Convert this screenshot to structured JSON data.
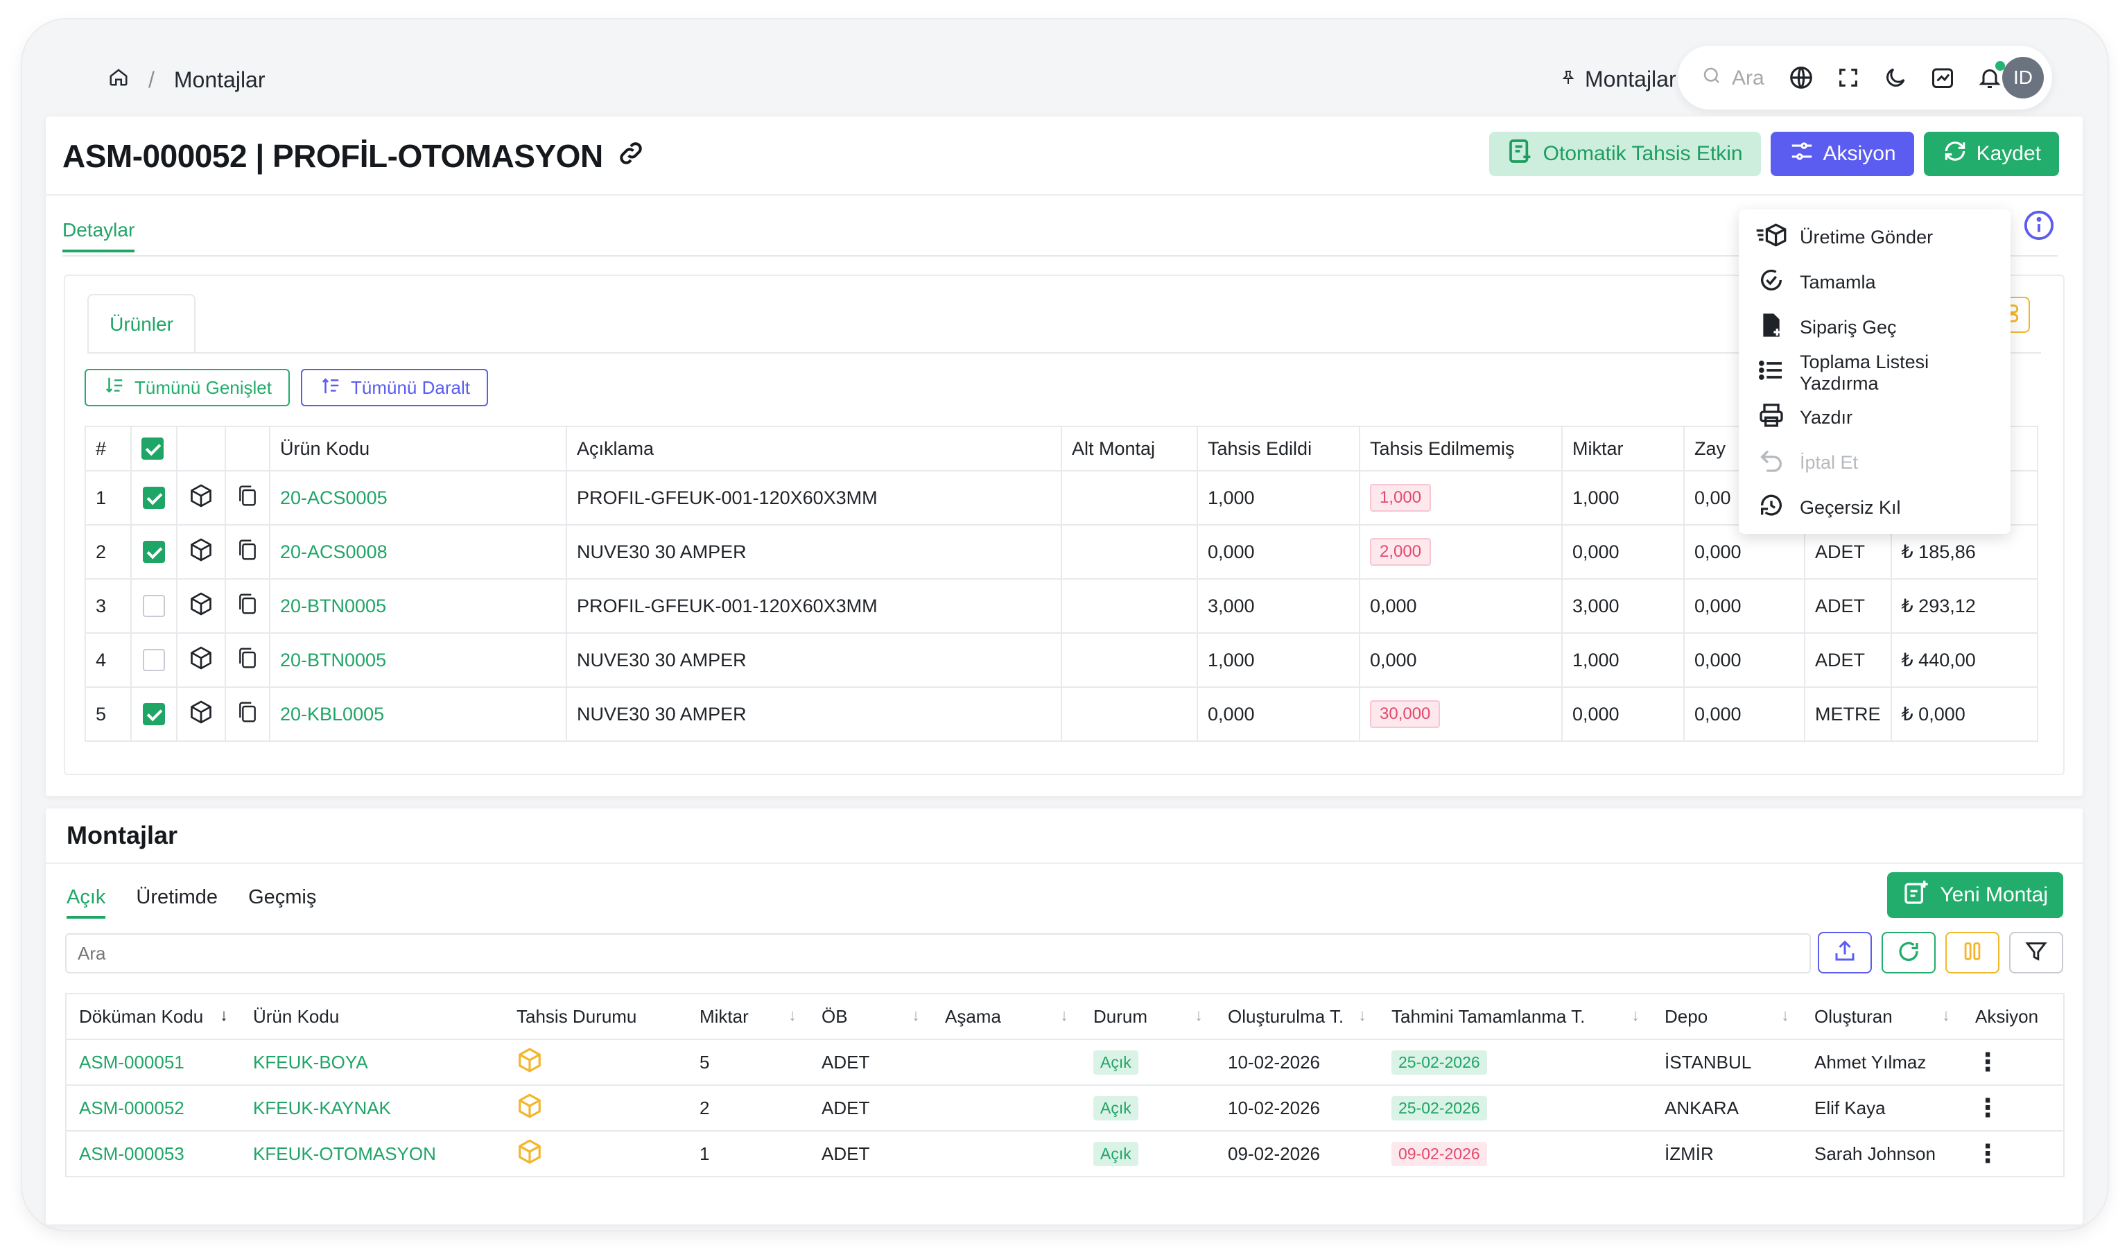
{
  "breadcrumb": {
    "current": "Montajlar"
  },
  "topbar": {
    "pinned_label": "Montajlar",
    "search_placeholder": "Ara",
    "avatar_initials": "ID"
  },
  "document": {
    "title": "ASM-000052 | PROFİL-OTOMASYON",
    "buttons": {
      "auto_allocate": "Otomatik Tahsis Etkin",
      "action": "Aksiyon",
      "save": "Kaydet"
    },
    "tab_details": "Detaylar",
    "subtab_products": "Ürünler",
    "expand_all": "Tümünü Genişlet",
    "collapse_all": "Tümünü Daralt"
  },
  "products_table": {
    "headers": [
      "#",
      "",
      "",
      "",
      "Ürün Kodu",
      "Açıklama",
      "Alt Montaj",
      "Tahsis Edildi",
      "Tahsis Edilmemiş",
      "Miktar",
      "Zay",
      "",
      ""
    ],
    "rows": [
      {
        "no": "1",
        "checked": true,
        "code": "20-ACS0005",
        "desc": "PROFIL-GFEUK-001-120X60X3MM",
        "sub": "",
        "allocated": "1,000",
        "unallocated": "1,000",
        "unalloc_flag": true,
        "qty": "1,000",
        "waste": "0,00",
        "unit": "",
        "price": ""
      },
      {
        "no": "2",
        "checked": true,
        "code": "20-ACS0008",
        "desc": "NUVE30 30 AMPER",
        "sub": "",
        "allocated": "0,000",
        "unallocated": "2,000",
        "unalloc_flag": true,
        "qty": "0,000",
        "waste": "0,000",
        "unit": "ADET",
        "price": "₺ 185,86"
      },
      {
        "no": "3",
        "checked": false,
        "code": "20-BTN0005",
        "desc": "PROFIL-GFEUK-001-120X60X3MM",
        "sub": "",
        "allocated": "3,000",
        "unallocated": "0,000",
        "unalloc_flag": false,
        "qty": "3,000",
        "waste": "0,000",
        "unit": "ADET",
        "price": "₺ 293,12"
      },
      {
        "no": "4",
        "checked": false,
        "code": "20-BTN0005",
        "desc": "NUVE30 30 AMPER",
        "sub": "",
        "allocated": "1,000",
        "unallocated": "0,000",
        "unalloc_flag": false,
        "qty": "1,000",
        "waste": "0,000",
        "unit": "ADET",
        "price": "₺ 440,00"
      },
      {
        "no": "5",
        "checked": true,
        "code": "20-KBL0005",
        "desc": "NUVE30 30 AMPER",
        "sub": "",
        "allocated": "0,000",
        "unallocated": "30,000",
        "unalloc_flag": true,
        "qty": "0,000",
        "waste": "0,000",
        "unit": "METRE",
        "price": "₺ 0,000"
      }
    ]
  },
  "action_menu": {
    "items": [
      {
        "label": "Üretime Gönder",
        "disabled": false
      },
      {
        "label": "Tamamla",
        "disabled": false
      },
      {
        "label": "Sipariş Geç",
        "disabled": false
      },
      {
        "label": "Toplama Listesi Yazdırma",
        "disabled": false
      },
      {
        "label": "Yazdır",
        "disabled": false
      },
      {
        "label": "İptal Et",
        "disabled": true
      },
      {
        "label": "Geçersiz Kıl",
        "disabled": false
      }
    ]
  },
  "assemblies": {
    "title": "Montajlar",
    "tabs": [
      "Açık",
      "Üretimde",
      "Geçmiş"
    ],
    "new_button": "Yeni Montaj",
    "search_placeholder": "Ara",
    "headers": [
      "Döküman Kodu",
      "Ürün Kodu",
      "Tahsis Durumu",
      "Miktar",
      "ÖB",
      "Aşama",
      "Durum",
      "Oluşturulma T.",
      "Tahmini Tamamlanma T.",
      "Depo",
      "Oluşturan",
      "Aksiyon"
    ],
    "rows": [
      {
        "doc": "ASM-000051",
        "product": "KFEUK-BOYA",
        "qty": "5",
        "unit": "ADET",
        "stage": "",
        "status": "Açık",
        "created": "10-02-2026",
        "eta": "25-02-2026",
        "eta_late": false,
        "depot": "İSTANBUL",
        "creator": "Ahmet Yılmaz"
      },
      {
        "doc": "ASM-000052",
        "product": "KFEUK-KAYNAK",
        "qty": "2",
        "unit": "ADET",
        "stage": "",
        "status": "Açık",
        "created": "10-02-2026",
        "eta": "25-02-2026",
        "eta_late": false,
        "depot": "ANKARA",
        "creator": "Elif Kaya"
      },
      {
        "doc": "ASM-000053",
        "product": "KFEUK-OTOMASYON",
        "qty": "1",
        "unit": "ADET",
        "stage": "",
        "status": "Açık",
        "created": "09-02-2026",
        "eta": "09-02-2026",
        "eta_late": true,
        "depot": "İZMİR",
        "creator": "Sarah Johnson"
      }
    ]
  },
  "colors": {
    "green": "#1fa566",
    "blue": "#5b5cf0",
    "amber": "#f3b62b",
    "pink": "#e24a6b"
  }
}
